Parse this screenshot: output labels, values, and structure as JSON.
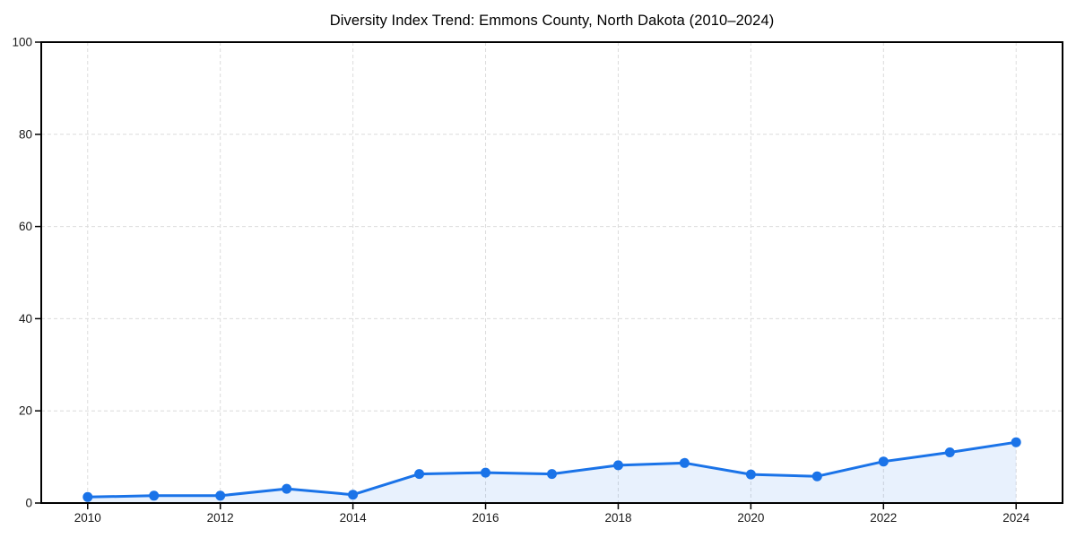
{
  "chart_data": {
    "type": "line",
    "title": "Diversity Index Trend: Emmons County, North Dakota (2010–2024)",
    "x": [
      2010,
      2011,
      2012,
      2013,
      2014,
      2015,
      2016,
      2017,
      2018,
      2019,
      2020,
      2021,
      2022,
      2023,
      2024
    ],
    "series": [
      {
        "name": "Diversity Index",
        "values": [
          1.3,
          1.6,
          1.6,
          3.1,
          1.8,
          6.3,
          6.6,
          6.3,
          8.2,
          8.7,
          6.2,
          5.8,
          9.0,
          11.0,
          13.2
        ]
      }
    ],
    "xlabel": "",
    "ylabel": "",
    "xlim": [
      2009.3,
      2024.7
    ],
    "ylim": [
      0,
      100
    ],
    "x_ticks": [
      2010,
      2012,
      2014,
      2016,
      2018,
      2020,
      2022,
      2024
    ],
    "y_ticks": [
      0,
      20,
      40,
      60,
      80,
      100
    ],
    "grid": "dashed",
    "legend_position": "none",
    "colors": {
      "line": "#1a73e8",
      "marker": "#1a73e8",
      "area_fill": "rgba(26, 115, 232, 0.10)",
      "grid": "#dcdcdc",
      "spine": "#000000",
      "tick_label": "#1a1a1a",
      "background": "#ffffff"
    },
    "style": {
      "marker": "circle",
      "area_fill_to_zero": true
    }
  }
}
